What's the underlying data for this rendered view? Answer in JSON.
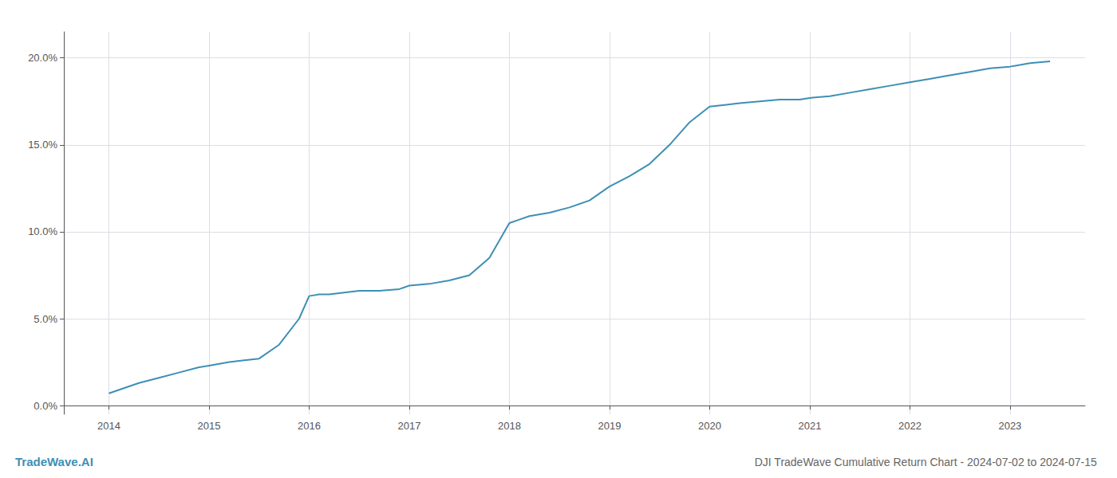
{
  "chart_data": {
    "type": "line",
    "title": "DJI TradeWave Cumulative Return Chart - 2024-07-02 to 2024-07-15",
    "annotations": [
      "TradeWave.AI"
    ],
    "color": "#3d8fb5",
    "grid": true,
    "x": [
      2014.0,
      2014.15,
      2014.3,
      2014.5,
      2014.7,
      2014.9,
      2015.0,
      2015.2,
      2015.35,
      2015.5,
      2015.7,
      2015.9,
      2016.0,
      2016.1,
      2016.2,
      2016.35,
      2016.5,
      2016.7,
      2016.9,
      2017.0,
      2017.2,
      2017.4,
      2017.6,
      2017.8,
      2018.0,
      2018.1,
      2018.2,
      2018.4,
      2018.6,
      2018.8,
      2019.0,
      2019.2,
      2019.4,
      2019.6,
      2019.8,
      2020.0,
      2020.15,
      2020.3,
      2020.5,
      2020.7,
      2020.9,
      2021.0,
      2021.2,
      2021.4,
      2021.6,
      2021.8,
      2022.0,
      2022.2,
      2022.4,
      2022.6,
      2022.8,
      2023.0,
      2023.2,
      2023.4
    ],
    "values": [
      0.007,
      0.01,
      0.013,
      0.016,
      0.019,
      0.022,
      0.023,
      0.025,
      0.026,
      0.027,
      0.035,
      0.05,
      0.063,
      0.064,
      0.064,
      0.065,
      0.066,
      0.066,
      0.067,
      0.069,
      0.07,
      0.072,
      0.075,
      0.085,
      0.105,
      0.107,
      0.109,
      0.111,
      0.114,
      0.118,
      0.126,
      0.132,
      0.139,
      0.15,
      0.163,
      0.172,
      0.173,
      0.174,
      0.175,
      0.176,
      0.176,
      0.177,
      0.178,
      0.18,
      0.182,
      0.184,
      0.186,
      0.188,
      0.19,
      0.192,
      0.194,
      0.195,
      0.197,
      0.198
    ],
    "xlim": [
      2013.55,
      2023.75
    ],
    "xticks": [
      2014,
      2015,
      2016,
      2017,
      2018,
      2019,
      2020,
      2021,
      2022,
      2023
    ],
    "ylim": [
      -0.005,
      0.215
    ],
    "yticks": [
      {
        "value": 0.0,
        "label": "0.0%"
      },
      {
        "value": 0.05,
        "label": "5.0%"
      },
      {
        "value": 0.1,
        "label": "10.0%"
      },
      {
        "value": 0.15,
        "label": "15.0%"
      },
      {
        "value": 0.2,
        "label": "20.0%"
      }
    ]
  }
}
